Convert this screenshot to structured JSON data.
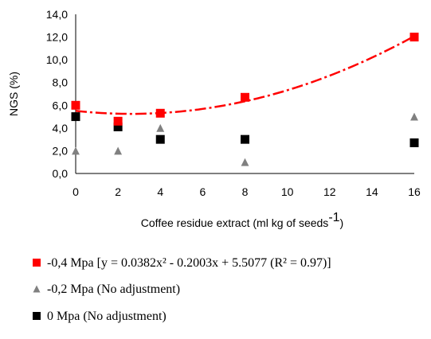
{
  "chart_data": {
    "type": "scatter",
    "xlabel": "Coffee residue extract (ml kg of seeds",
    "xlabel_superscript": "-1",
    "xlabel_suffix": ")",
    "ylabel": "NGS (%)",
    "xlim": [
      0,
      16
    ],
    "ylim": [
      0,
      14
    ],
    "x_ticks": [
      0,
      2,
      4,
      6,
      8,
      10,
      12,
      14,
      16
    ],
    "x_tick_labels": [
      "0",
      "2",
      "4",
      "6",
      "8",
      "10",
      "12",
      "14",
      "16"
    ],
    "y_ticks": [
      0,
      2,
      4,
      6,
      8,
      10,
      12,
      14
    ],
    "y_tick_labels": [
      "0,0",
      "2,0",
      "4,0",
      "6,0",
      "8,0",
      "10,0",
      "12,0",
      "14,0"
    ],
    "grid": false,
    "legend_position": "bottom",
    "series": [
      {
        "name": "-0,4 Mpa [y = 0.0382x² - 0.2003x + 5.5077 (R² = 0.97)]",
        "marker": "square",
        "color": "#ff0000",
        "x": [
          0,
          2,
          4,
          8,
          16
        ],
        "y": [
          6.0,
          4.6,
          5.3,
          6.7,
          12.0
        ],
        "trendline": {
          "type": "polynomial",
          "a": 0.0382,
          "b": -0.2003,
          "c": 5.5077,
          "style": "dash-dot",
          "color": "#ff0000"
        }
      },
      {
        "name": "-0,2 Mpa (No adjustment)",
        "marker": "triangle",
        "color": "#808080",
        "x": [
          0,
          2,
          4,
          8,
          16
        ],
        "y": [
          2.0,
          2.0,
          4.0,
          1.0,
          5.0
        ]
      },
      {
        "name": "0 Mpa (No adjustment)",
        "marker": "square",
        "color": "#000000",
        "x": [
          0,
          2,
          4,
          8,
          16
        ],
        "y": [
          5.0,
          4.1,
          3.0,
          3.0,
          2.7
        ]
      }
    ]
  }
}
